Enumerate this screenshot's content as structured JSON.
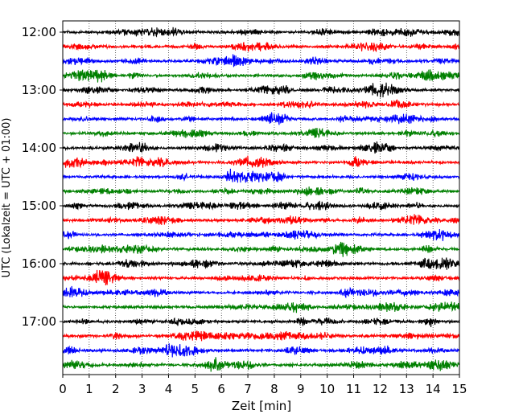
{
  "chart_data": {
    "type": "line",
    "title": "",
    "xlabel": "Zeit  [min]",
    "ylabel": "UTC (Lokalzeit = UTC + 01:00)",
    "xlim": [
      0,
      15
    ],
    "x_ticks": [
      "0",
      "1",
      "2",
      "3",
      "4",
      "5",
      "6",
      "7",
      "8",
      "9",
      "10",
      "11",
      "12",
      "13",
      "14",
      "15"
    ],
    "y_tick_labels": [
      "12:00",
      "13:00",
      "14:00",
      "15:00",
      "16:00",
      "17:00"
    ],
    "grid": "vertical dotted at each minute",
    "trace_interval_minutes": 15,
    "trace_start": "12:00",
    "trace_count": 24,
    "colors_cycle": [
      "#000000",
      "#ff0000",
      "#0000ff",
      "#008000"
    ],
    "series_description": "helicorder seismogram traces, one per 15 minutes, colors repeating black, red, blue, green"
  }
}
